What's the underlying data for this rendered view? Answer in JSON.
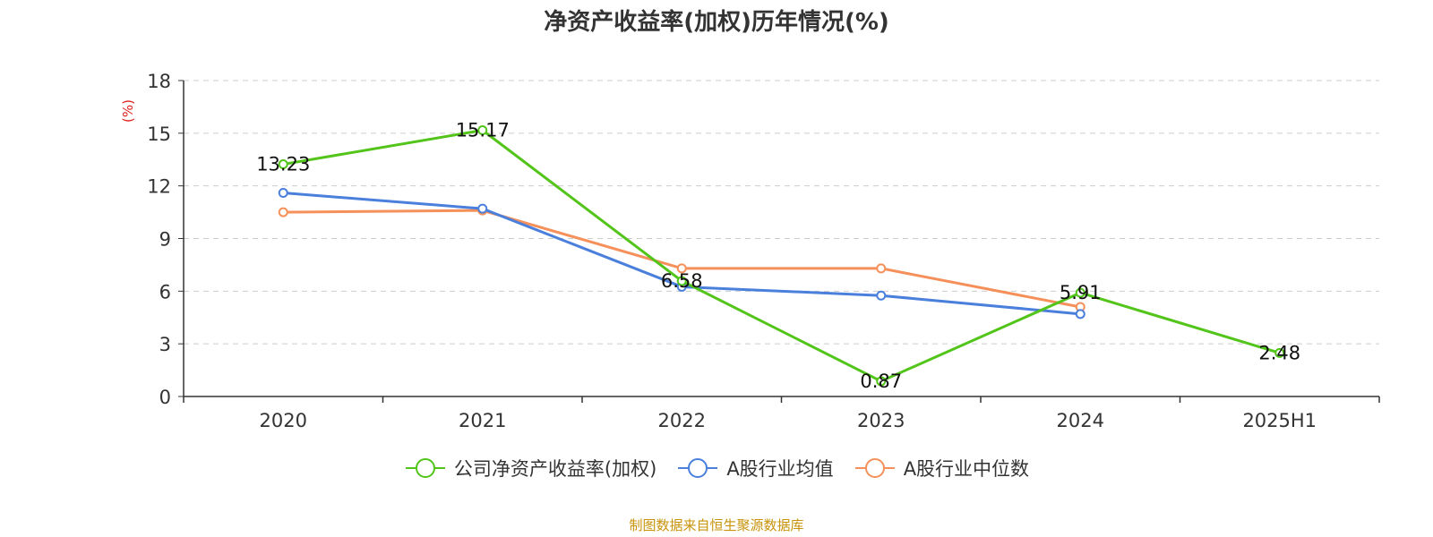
{
  "chart_data": {
    "type": "line",
    "title": "净资产收益率(加权)历年情况(%)",
    "ylabel": "(%)",
    "xlabel": "",
    "categories": [
      "2020",
      "2021",
      "2022",
      "2023",
      "2024",
      "2025H1"
    ],
    "ylim": [
      0,
      18
    ],
    "yticks": [
      0,
      3,
      6,
      9,
      12,
      15,
      18
    ],
    "grid": true,
    "legend_position": "bottom",
    "series": [
      {
        "name": "公司净资产收益率(加权)",
        "color": "#52c41a",
        "values": [
          13.23,
          15.17,
          6.58,
          0.87,
          5.91,
          2.48
        ],
        "labels": [
          "13.23",
          "15.17",
          "6.58",
          "0.87",
          "5.91",
          "2.48"
        ]
      },
      {
        "name": "A股行业均值",
        "color": "#4a7fdc",
        "values": [
          11.6,
          10.7,
          6.25,
          5.75,
          4.7,
          null
        ]
      },
      {
        "name": "A股行业中位数",
        "color": "#f5905a",
        "values": [
          10.5,
          10.6,
          7.3,
          7.3,
          5.1,
          null
        ]
      }
    ]
  },
  "source": "制图数据来自恒生聚源数据库"
}
